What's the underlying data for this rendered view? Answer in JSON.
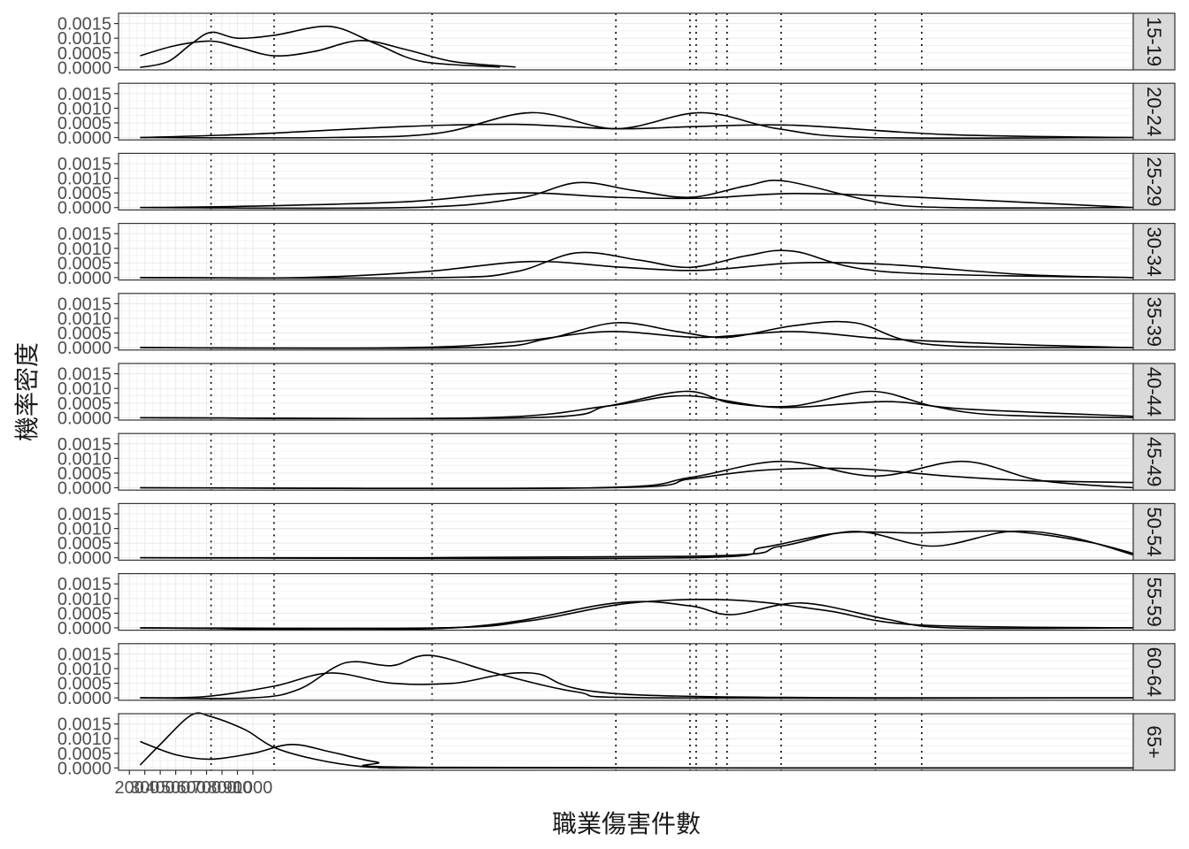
{
  "chart_data": {
    "type": "line",
    "chart_kind": "faceted density plot",
    "xlabel": "職業傷害件數",
    "ylabel": "機率密度",
    "x_tick_labels": [
      "200",
      "300",
      "400",
      "500",
      "600",
      "700",
      "800",
      "900",
      "1000"
    ],
    "xlim": [
      130,
      6700
    ],
    "y_tick_labels": [
      "0.0000",
      "0.0005",
      "0.0010",
      "0.0015"
    ],
    "ylim": [
      -8e-05,
      0.00185
    ],
    "grid": true,
    "legend": "none",
    "reference_lines": [
      729,
      1137,
      2160,
      3350,
      3830,
      3870,
      4000,
      4070,
      4420,
      5030,
      5330
    ],
    "colors": {
      "line": "#000000",
      "panel_border": "#333333",
      "grid": "#ebebeb",
      "strip_fill": "#d9d9d9",
      "tick_text": "#4d4d4d"
    },
    "panels": [
      {
        "label": "15-19",
        "series": [
          {
            "x": [
              270,
              500,
              729,
              900,
              1137,
              1400,
              1700,
              2000,
              2300,
              2700
            ],
            "y": [
              0.0004,
              0.00075,
              0.0009,
              0.0007,
              0.0004,
              0.00055,
              0.00092,
              0.0006,
              0.0002,
              2e-05
            ]
          },
          {
            "x": [
              270,
              450,
              600,
              729,
              900,
              1137,
              1500,
              1800,
              2100,
              2600
            ],
            "y": [
              0.0,
              0.0002,
              0.0008,
              0.0012,
              0.001,
              0.0011,
              0.0014,
              0.0008,
              0.0002,
              2e-05
            ]
          }
        ]
      },
      {
        "label": "20-24",
        "series": [
          {
            "x": [
              270,
              1000,
              2000,
              2700,
              3350,
              3900,
              4500,
              5500,
              6700
            ],
            "y": [
              0.0,
              0.00012,
              0.00038,
              0.00045,
              0.0003,
              0.00038,
              0.00042,
              0.0001,
              0.0
            ]
          },
          {
            "x": [
              270,
              1500,
              2200,
              2800,
              3350,
              3900,
              4400,
              5000,
              6700
            ],
            "y": [
              0.0,
              0.0,
              0.00015,
              0.00085,
              0.0003,
              0.00085,
              0.0003,
              0.0,
              0.0
            ]
          }
        ]
      },
      {
        "label": "25-29",
        "series": [
          {
            "x": [
              270,
              1000,
              2000,
              2700,
              3350,
              3900,
              4500,
              5300,
              6700
            ],
            "y": [
              0.0,
              5e-05,
              0.0002,
              0.0005,
              0.00035,
              0.00032,
              0.00048,
              0.00035,
              0.0
            ]
          },
          {
            "x": [
              270,
              2000,
              2700,
              3100,
              3450,
              3830,
              4200,
              4450,
              5030,
              5500,
              6700
            ],
            "y": [
              0.0,
              0.0,
              0.0003,
              0.00085,
              0.0006,
              0.00035,
              0.00075,
              0.0009,
              0.0002,
              0.0,
              0.0
            ]
          }
        ]
      },
      {
        "label": "30-34",
        "series": [
          {
            "x": [
              270,
              1300,
              2100,
              2800,
              3400,
              3900,
              4500,
              5100,
              6000,
              6700
            ],
            "y": [
              0.0,
              0.0,
              0.0002,
              0.00055,
              0.00035,
              0.00025,
              0.0005,
              0.00045,
              0.0001,
              0.0
            ]
          },
          {
            "x": [
              270,
              2200,
              2700,
              3100,
              3500,
              3830,
              4200,
              4500,
              5100,
              6700
            ],
            "y": [
              0.0,
              0.0,
              0.0002,
              0.00085,
              0.0006,
              0.00035,
              0.00075,
              0.0009,
              0.0002,
              0.0
            ]
          }
        ]
      },
      {
        "label": "35-39",
        "series": [
          {
            "x": [
              270,
              2000,
              2700,
              3300,
              3900,
              4500,
              5100,
              6000,
              6700
            ],
            "y": [
              0.0,
              0.0,
              0.0002,
              0.00055,
              0.00035,
              0.00055,
              0.0003,
              0.0001,
              0.0
            ]
          },
          {
            "x": [
              270,
              2400,
              2900,
              3350,
              3750,
              4070,
              4500,
              4900,
              5400,
              6700
            ],
            "y": [
              0.0,
              0.0,
              0.0003,
              0.00085,
              0.00055,
              0.00035,
              0.00075,
              0.00085,
              0.0001,
              0.0
            ]
          }
        ]
      },
      {
        "label": "40-44",
        "series": [
          {
            "x": [
              270,
              2500,
              3300,
              3800,
              4400,
              5100,
              5600,
              6700
            ],
            "y": [
              0.0,
              0.0,
              0.0004,
              0.00075,
              0.00035,
              0.00055,
              0.0003,
              5e-05
            ]
          },
          {
            "x": [
              270,
              2800,
              3300,
              3800,
              4100,
              4500,
              5000,
              5400,
              5800,
              6700
            ],
            "y": [
              0.0,
              0.0,
              0.0004,
              0.0009,
              0.0005,
              0.0004,
              0.0009,
              0.0004,
              0.0001,
              0.0
            ]
          }
        ]
      },
      {
        "label": "45-49",
        "series": [
          {
            "x": [
              270,
              3300,
              3830,
              4300,
              4900,
              5500,
              6000,
              6700
            ],
            "y": [
              0.0,
              0.0,
              0.0003,
              0.0006,
              0.00065,
              0.0004,
              0.00025,
              0.00018
            ]
          },
          {
            "x": [
              270,
              3200,
              3830,
              4420,
              5030,
              5600,
              6100,
              6700
            ],
            "y": [
              0.0,
              0.0,
              0.00035,
              0.0009,
              0.0004,
              0.0009,
              0.00025,
              0.0
            ]
          }
        ]
      },
      {
        "label": "50-54",
        "series": [
          {
            "x": [
              270,
              3800,
              4300,
              4800,
              5300,
              5900,
              6400,
              6700
            ],
            "y": [
              0.0,
              0.0,
              0.00035,
              0.00085,
              0.00085,
              0.0009,
              0.00055,
              0.00015
            ]
          },
          {
            "x": [
              270,
              3830,
              4420,
              4900,
              5400,
              5900,
              6300,
              6700
            ],
            "y": [
              0.0,
              5e-05,
              0.0004,
              0.0009,
              0.0004,
              0.0009,
              0.0007,
              0.0001
            ]
          }
        ]
      },
      {
        "label": "55-59",
        "series": [
          {
            "x": [
              270,
              2200,
              2800,
              3450,
              4100,
              4700,
              5300,
              6700
            ],
            "y": [
              0.0,
              0.0,
              0.00025,
              0.00085,
              0.00095,
              0.0006,
              0.0001,
              0.0
            ]
          },
          {
            "x": [
              270,
              2300,
              3350,
              3830,
              4100,
              4550,
              5100,
              5500,
              6700
            ],
            "y": [
              0.0,
              0.0,
              0.00085,
              0.00075,
              0.00045,
              0.00085,
              0.0003,
              0.0,
              0.0
            ]
          }
        ]
      },
      {
        "label": "60-64",
        "series": [
          {
            "x": [
              270,
              700,
              1137,
              1500,
              1900,
              2300,
              2800,
              3500,
              6700
            ],
            "y": [
              0.0,
              5e-05,
              0.0004,
              0.00085,
              0.0005,
              0.0005,
              0.00085,
              0.0001,
              0.0
            ]
          },
          {
            "x": [
              270,
              1000,
              1300,
              1600,
              1900,
              2150,
              2600,
              3100,
              3600,
              6700
            ],
            "y": [
              0.0,
              0.0,
              0.0003,
              0.0012,
              0.0011,
              0.00145,
              0.0008,
              0.0002,
              0.0,
              0.0
            ]
          }
        ]
      },
      {
        "label": "65+",
        "series": [
          {
            "x": [
              270,
              400,
              600,
              729,
              950,
              1137,
              1400,
              1700,
              2000,
              2200,
              6700
            ],
            "y": [
              0.0001,
              0.0008,
              0.0018,
              0.00175,
              0.0013,
              0.0007,
              0.0003,
              5e-05,
              0.0,
              0.0,
              0.0
            ]
          },
          {
            "x": [
              270,
              500,
              729,
              1000,
              1250,
              1500,
              1800,
              2160,
              6700
            ],
            "y": [
              0.0009,
              0.00045,
              0.0003,
              0.0005,
              0.0008,
              0.00055,
              0.0002,
              2e-05,
              0.0
            ]
          }
        ]
      }
    ]
  }
}
